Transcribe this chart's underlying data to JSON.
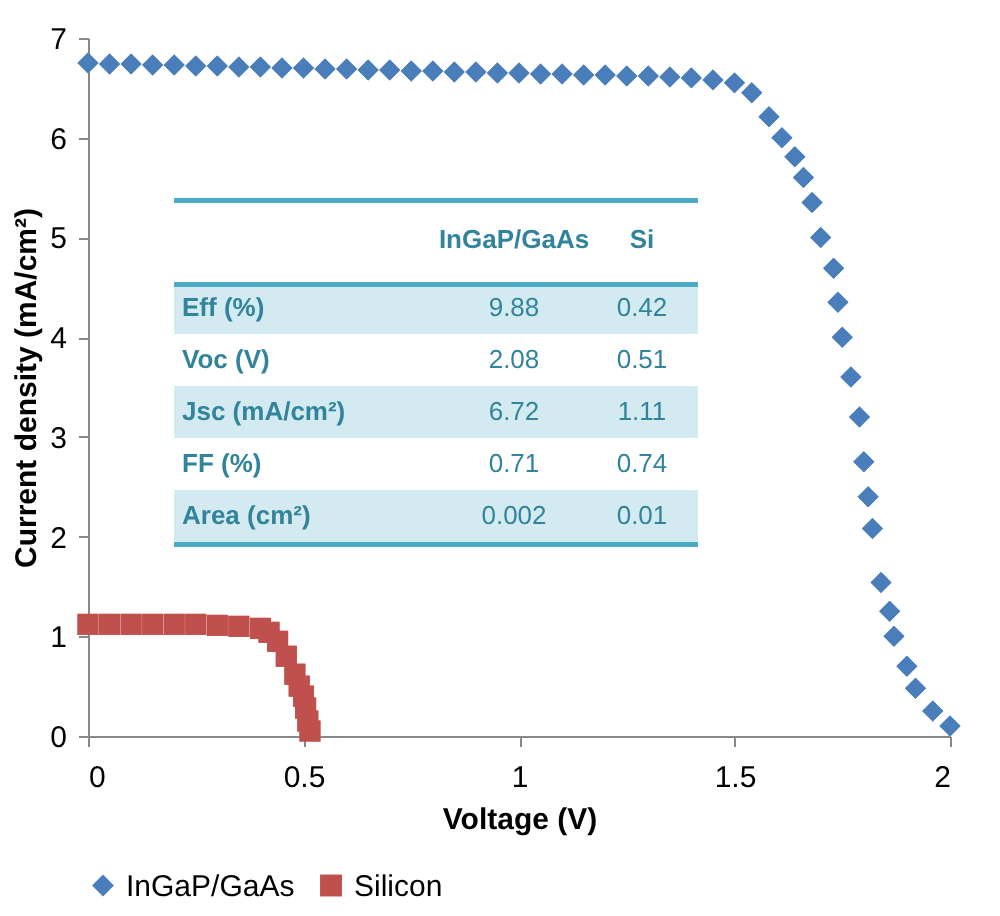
{
  "chart_data": {
    "type": "scatter",
    "xlabel": "Voltage (V)",
    "ylabel": "Current density  (mA/cm²)",
    "xlim": [
      0,
      2
    ],
    "xticks": [
      0,
      0.5,
      1,
      1.5,
      2
    ],
    "ylim": [
      0,
      7
    ],
    "yticks": [
      0,
      1,
      2,
      3,
      4,
      5,
      6,
      7
    ],
    "grid": false,
    "legend": "bottom",
    "series": [
      {
        "name": "InGaP/GaAs",
        "color": "#4a7ebb",
        "marker": "diamond",
        "x": [
          0,
          0.05,
          0.1,
          0.15,
          0.2,
          0.25,
          0.3,
          0.35,
          0.4,
          0.45,
          0.5,
          0.55,
          0.6,
          0.65,
          0.7,
          0.75,
          0.8,
          0.85,
          0.9,
          0.95,
          1.0,
          1.05,
          1.1,
          1.15,
          1.2,
          1.25,
          1.3,
          1.35,
          1.4,
          1.45,
          1.5,
          1.54,
          1.58,
          1.61,
          1.64,
          1.66,
          1.68,
          1.7,
          1.73,
          1.74,
          1.75,
          1.77,
          1.79,
          1.8,
          1.81,
          1.82,
          1.84,
          1.86,
          1.87,
          1.9,
          1.92,
          1.96,
          2.0
        ],
        "values": [
          6.75,
          6.74,
          6.74,
          6.73,
          6.73,
          6.72,
          6.72,
          6.71,
          6.71,
          6.7,
          6.7,
          6.69,
          6.69,
          6.68,
          6.68,
          6.67,
          6.67,
          6.66,
          6.66,
          6.65,
          6.65,
          6.64,
          6.64,
          6.63,
          6.63,
          6.62,
          6.62,
          6.61,
          6.6,
          6.58,
          6.55,
          6.45,
          6.21,
          6.0,
          5.81,
          5.6,
          5.35,
          5.0,
          4.69,
          4.35,
          4.0,
          3.6,
          3.2,
          2.75,
          2.4,
          2.08,
          1.54,
          1.25,
          1.0,
          0.7,
          0.48,
          0.25,
          0.1
        ]
      },
      {
        "name": "Silicon",
        "color": "#c0504d",
        "marker": "square",
        "x": [
          0,
          0.05,
          0.1,
          0.15,
          0.2,
          0.25,
          0.3,
          0.35,
          0.4,
          0.42,
          0.44,
          0.46,
          0.48,
          0.49,
          0.5,
          0.505,
          0.51,
          0.515
        ],
        "values": [
          1.12,
          1.12,
          1.12,
          1.12,
          1.12,
          1.12,
          1.11,
          1.1,
          1.08,
          1.04,
          0.95,
          0.8,
          0.62,
          0.5,
          0.4,
          0.28,
          0.15,
          0.05
        ]
      }
    ],
    "annotations": [
      "InGaP/GaAs",
      "Si",
      "Eff (%)",
      "9.88",
      "0.42",
      "Voc (V)",
      "2.08",
      "0.51",
      "Jsc (mA/cm²)",
      "6.72",
      "1.11",
      "FF (%)",
      "0.71",
      "0.74",
      "Area (cm²)",
      "0.002",
      "0.01"
    ]
  }
}
